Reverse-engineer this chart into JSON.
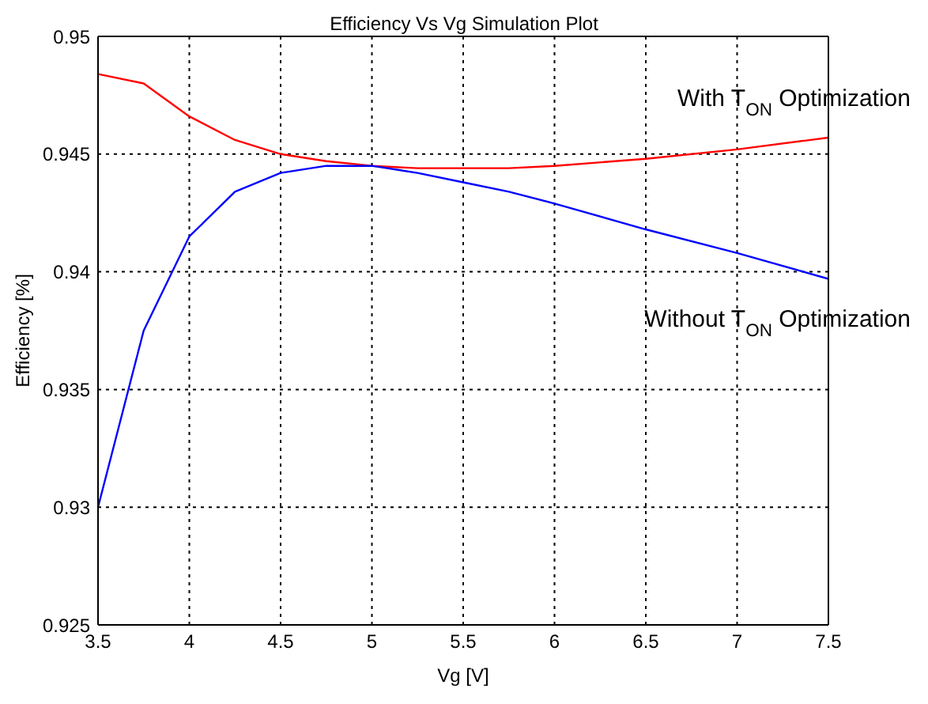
{
  "chart_data": {
    "type": "line",
    "title": "Efficiency Vs Vg Simulation Plot",
    "xlabel": "Vg [V]",
    "ylabel": "Efficiency [%]",
    "x": [
      3.5,
      3.75,
      4,
      4.25,
      4.5,
      4.75,
      5,
      5.25,
      5.5,
      5.75,
      6,
      6.5,
      7,
      7.5
    ],
    "series": [
      {
        "name": "With T$_{ON}$ Optimization",
        "color": "#ff0000",
        "values": [
          0.9484,
          0.948,
          0.9466,
          0.9456,
          0.945,
          0.9447,
          0.9445,
          0.9444,
          0.9444,
          0.9444,
          0.9445,
          0.9448,
          0.9452,
          0.9457
        ]
      },
      {
        "name": "Without T$_{ON}$ Optimization",
        "color": "#0000ff",
        "values": [
          0.93,
          0.9375,
          0.9415,
          0.9434,
          0.9442,
          0.9445,
          0.9445,
          0.9442,
          0.9438,
          0.9434,
          0.9429,
          0.9418,
          0.9408,
          0.9397
        ]
      }
    ],
    "xlim": [
      3.5,
      7.5
    ],
    "xticks": [
      3.5,
      4,
      4.5,
      5,
      5.5,
      6,
      6.5,
      7,
      7.5
    ],
    "ylim": [
      0.925,
      0.95
    ],
    "yticks": [
      0.925,
      0.93,
      0.935,
      0.94,
      0.945,
      0.95
    ],
    "grid": true,
    "marker": "none",
    "line_style": "solid"
  }
}
